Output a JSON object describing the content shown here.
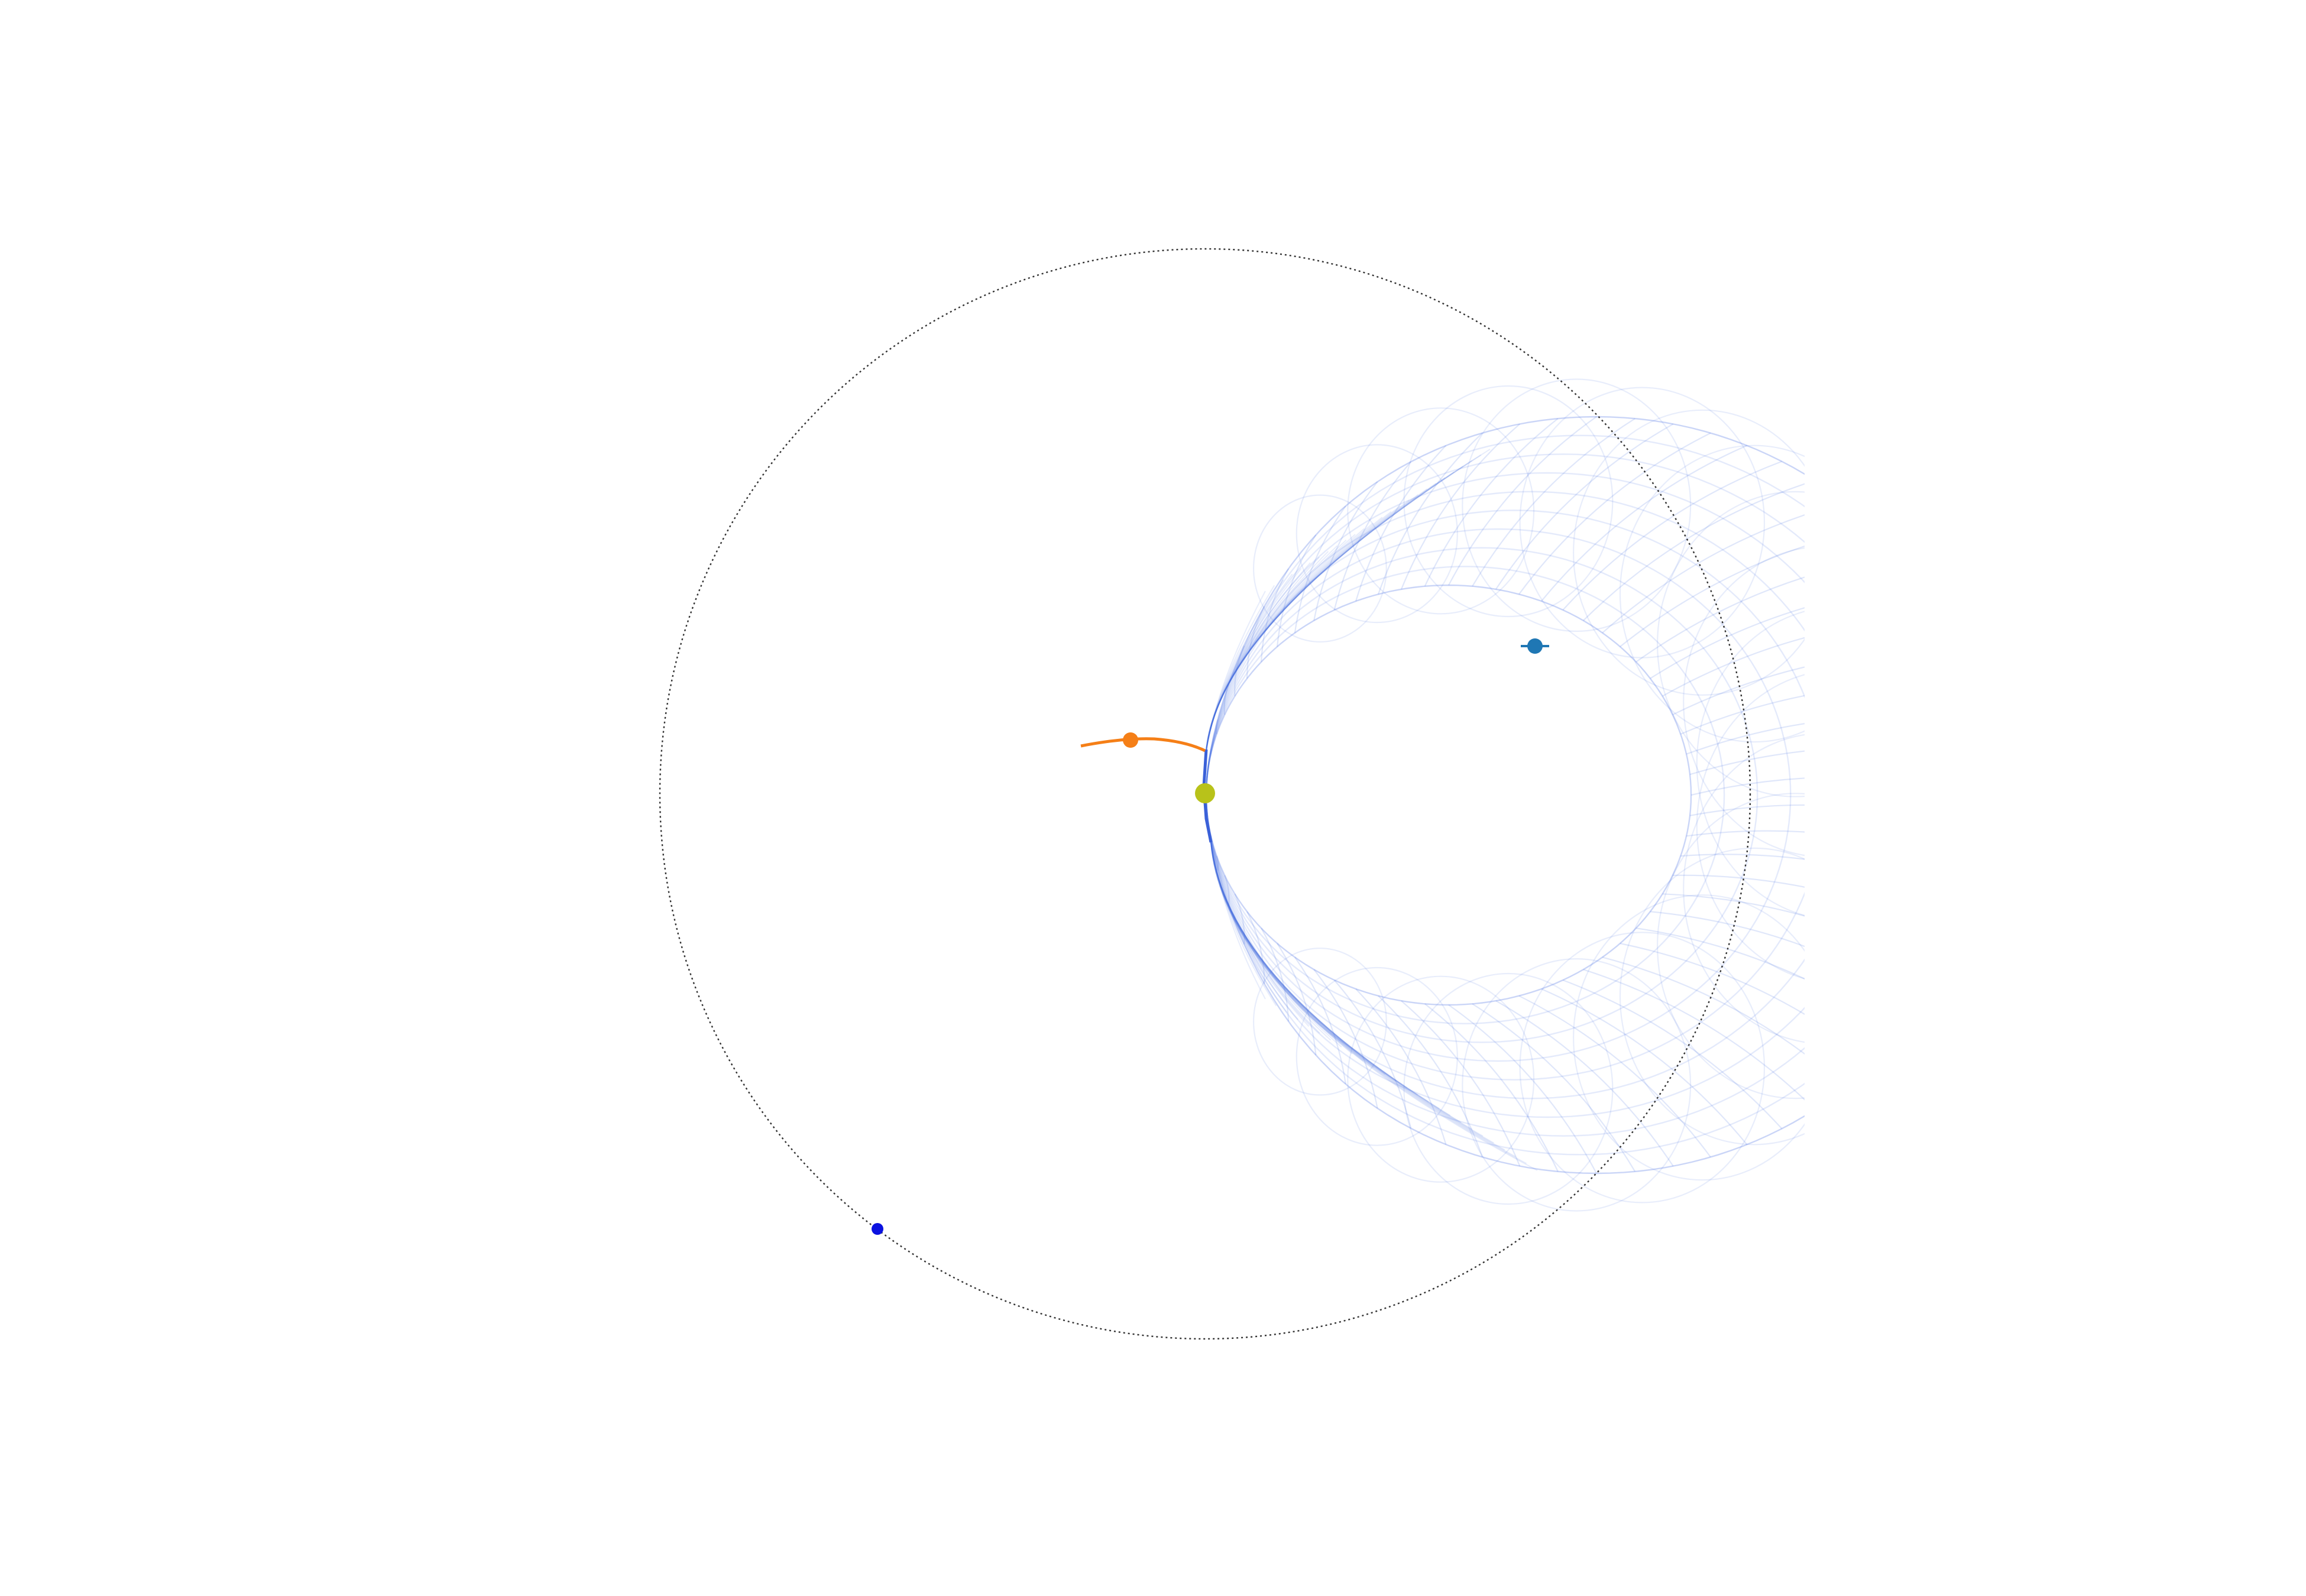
{
  "diagram": {
    "type": "orbit-sketch",
    "colors": {
      "background": "#ffffff",
      "orbit_ring": "#333333",
      "mesh": "#4169e1",
      "mesh_edge": "#3a60d8",
      "central_body": "#b8c21a",
      "orange_body": "#f57f17",
      "steel_body": "#1f77b4",
      "blue_body": "#0b12e0"
    },
    "elements": {
      "orbit_ring": {
        "style": "dotted"
      },
      "central_body": {
        "label": ""
      },
      "orange_body": {
        "label": ""
      },
      "steel_body": {
        "label": ""
      },
      "blue_body": {
        "label": ""
      },
      "trajectory_mesh": {
        "style": "wireframe"
      }
    }
  }
}
